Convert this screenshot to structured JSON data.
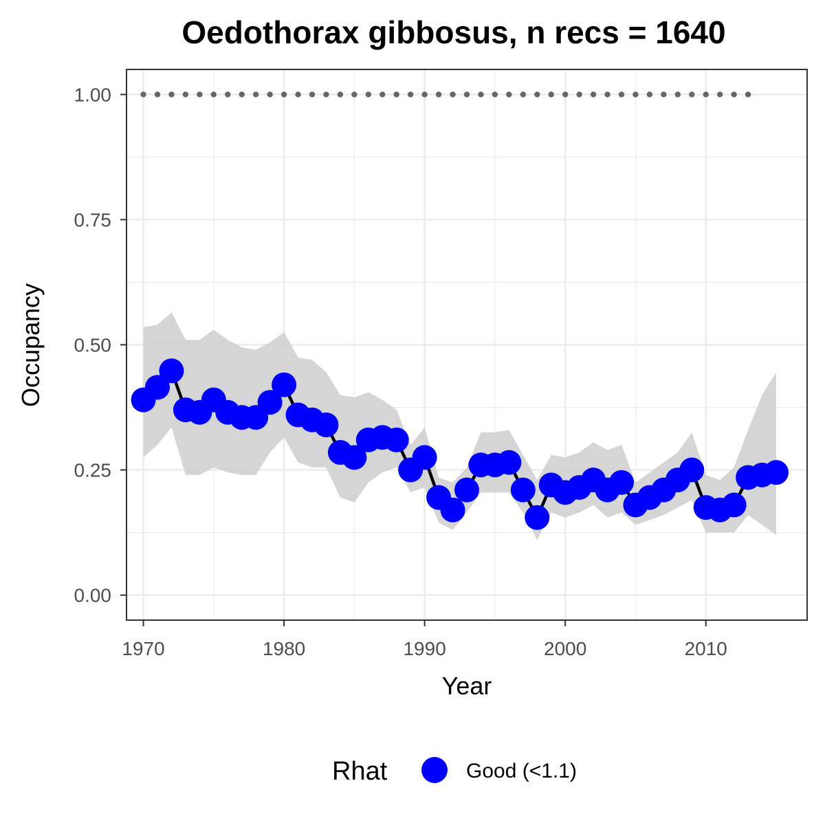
{
  "chart_data": {
    "type": "line",
    "title": "Oedothorax gibbosus, n recs = 1640",
    "xlabel": "Year",
    "ylabel": "Occupancy",
    "xlim": [
      1968.8,
      2017.2
    ],
    "ylim": [
      -0.05,
      1.05
    ],
    "x_ticks": [
      1970,
      1980,
      1990,
      2000,
      2010
    ],
    "x_tick_labels": [
      "1970",
      "1980",
      "1990",
      "2000",
      "2010"
    ],
    "y_ticks": [
      0,
      0.25,
      0.5,
      0.75,
      1.0
    ],
    "y_tick_labels": [
      "0.00",
      "0.25",
      "0.50",
      "0.75",
      "1.00"
    ],
    "grid": true,
    "years": [
      1970,
      1971,
      1972,
      1973,
      1974,
      1975,
      1976,
      1977,
      1978,
      1979,
      1980,
      1981,
      1982,
      1983,
      1984,
      1985,
      1986,
      1987,
      1988,
      1989,
      1990,
      1991,
      1992,
      1993,
      1994,
      1995,
      1996,
      1997,
      1998,
      1999,
      2000,
      2001,
      2002,
      2003,
      2004,
      2005,
      2006,
      2007,
      2008,
      2009,
      2010,
      2011,
      2012,
      2013,
      2014,
      2015
    ],
    "occupancy": [
      0.39,
      0.415,
      0.448,
      0.37,
      0.365,
      0.39,
      0.365,
      0.355,
      0.355,
      0.385,
      0.42,
      0.36,
      0.35,
      0.34,
      0.285,
      0.275,
      0.31,
      0.315,
      0.31,
      0.25,
      0.275,
      0.195,
      0.17,
      0.21,
      0.26,
      0.26,
      0.265,
      0.21,
      0.155,
      0.22,
      0.205,
      0.215,
      0.23,
      0.21,
      0.225,
      0.18,
      0.195,
      0.21,
      0.23,
      0.25,
      0.175,
      0.17,
      0.18,
      0.235,
      0.24,
      0.245
    ],
    "ci_upper": [
      0.535,
      0.54,
      0.565,
      0.51,
      0.51,
      0.53,
      0.51,
      0.495,
      0.49,
      0.505,
      0.525,
      0.475,
      0.47,
      0.445,
      0.4,
      0.395,
      0.405,
      0.39,
      0.37,
      0.3,
      0.335,
      0.235,
      0.225,
      0.255,
      0.325,
      0.325,
      0.33,
      0.28,
      0.23,
      0.28,
      0.275,
      0.285,
      0.305,
      0.29,
      0.3,
      0.225,
      0.245,
      0.265,
      0.285,
      0.325,
      0.24,
      0.23,
      0.255,
      0.33,
      0.4,
      0.445
    ],
    "ci_lower": [
      0.275,
      0.3,
      0.335,
      0.24,
      0.24,
      0.255,
      0.245,
      0.24,
      0.24,
      0.285,
      0.315,
      0.265,
      0.255,
      0.255,
      0.195,
      0.185,
      0.225,
      0.245,
      0.255,
      0.205,
      0.215,
      0.145,
      0.13,
      0.165,
      0.205,
      0.205,
      0.205,
      0.165,
      0.11,
      0.165,
      0.155,
      0.165,
      0.18,
      0.155,
      0.165,
      0.14,
      0.15,
      0.16,
      0.175,
      0.19,
      0.125,
      0.125,
      0.125,
      0.16,
      0.14,
      0.12
    ],
    "reference_points": {
      "y": 1.0,
      "x": [
        1970,
        1971,
        1972,
        1973,
        1974,
        1975,
        1976,
        1977,
        1978,
        1979,
        1980,
        1981,
        1982,
        1983,
        1984,
        1985,
        1986,
        1987,
        1988,
        1989,
        1990,
        1991,
        1992,
        1993,
        1994,
        1995,
        1996,
        1997,
        1998,
        1999,
        2000,
        2001,
        2002,
        2003,
        2004,
        2005,
        2006,
        2007,
        2008,
        2009,
        2010,
        2011,
        2012,
        2013
      ]
    },
    "legend": {
      "title": "Rhat",
      "position": "bottom",
      "entries": [
        {
          "label": "Good (<1.1)",
          "color": "#0000ff"
        }
      ]
    },
    "colors": {
      "points": "#0000ff",
      "line": "#000000",
      "ribbon": "#d3d3d3",
      "reference": "#666666",
      "grid": "#ebebeb",
      "panel_border": "#333333"
    }
  }
}
